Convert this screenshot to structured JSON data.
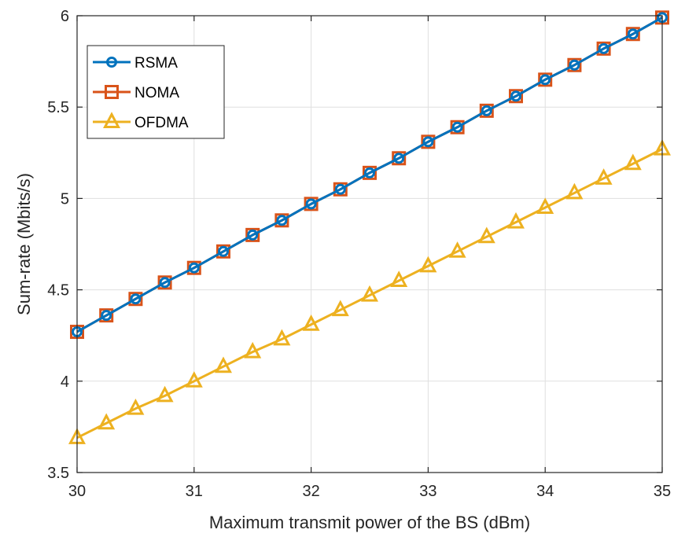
{
  "chart_data": {
    "type": "line",
    "title": "",
    "xlabel": "Maximum transmit power of the BS (dBm)",
    "ylabel": "Sum-rate (Mbits/s)",
    "xlim": [
      30,
      35
    ],
    "ylim": [
      3.5,
      6
    ],
    "xticks": [
      30,
      31,
      32,
      33,
      34,
      35
    ],
    "yticks": [
      3.5,
      4,
      4.5,
      5,
      5.5,
      6
    ],
    "xtick_labels": [
      "30",
      "31",
      "32",
      "33",
      "34",
      "35"
    ],
    "ytick_labels": [
      "3.5",
      "4",
      "4.5",
      "5",
      "5.5",
      "6"
    ],
    "grid": true,
    "legend_position": "top-left",
    "x": [
      30,
      30.25,
      30.5,
      30.75,
      31,
      31.25,
      31.5,
      31.75,
      32,
      32.25,
      32.5,
      32.75,
      33,
      33.25,
      33.5,
      33.75,
      34,
      34.25,
      34.5,
      34.75,
      35
    ],
    "series": [
      {
        "name": "RSMA",
        "color": "#0072BD",
        "marker": "circle",
        "values": [
          4.27,
          4.36,
          4.45,
          4.54,
          4.62,
          4.71,
          4.8,
          4.88,
          4.97,
          5.05,
          5.14,
          5.22,
          5.31,
          5.39,
          5.48,
          5.56,
          5.65,
          5.73,
          5.82,
          5.9,
          5.99
        ]
      },
      {
        "name": "NOMA",
        "color": "#D95319",
        "marker": "square",
        "values": [
          4.27,
          4.36,
          4.45,
          4.54,
          4.62,
          4.71,
          4.8,
          4.88,
          4.97,
          5.05,
          5.14,
          5.22,
          5.31,
          5.39,
          5.48,
          5.56,
          5.65,
          5.73,
          5.82,
          5.9,
          5.99
        ]
      },
      {
        "name": "OFDMA",
        "color": "#EDB120",
        "marker": "triangle",
        "values": [
          3.69,
          3.77,
          3.85,
          3.92,
          4.0,
          4.08,
          4.16,
          4.23,
          4.31,
          4.39,
          4.47,
          4.55,
          4.63,
          4.71,
          4.79,
          4.87,
          4.95,
          5.03,
          5.11,
          5.19,
          5.27
        ]
      }
    ]
  }
}
